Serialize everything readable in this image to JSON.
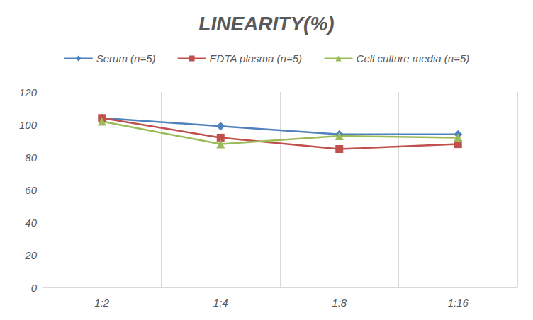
{
  "chart_data": {
    "type": "line",
    "title": "LINEARITY(%)",
    "categories": [
      "1:2",
      "1:4",
      "1:8",
      "1:16"
    ],
    "series": [
      {
        "name": "Serum (n=5)",
        "color": "#4f81bd",
        "marker": "diamond",
        "values": [
          104,
          99,
          94,
          94
        ]
      },
      {
        "name": "EDTA plasma (n=5)",
        "color": "#c0504d",
        "marker": "square",
        "values": [
          104,
          92,
          85,
          88
        ]
      },
      {
        "name": "Cell culture media (n=5)",
        "color": "#9bbb59",
        "marker": "triangle",
        "values": [
          102,
          88,
          93,
          92
        ]
      }
    ],
    "ylim": [
      0,
      120
    ],
    "yticks": [
      0,
      20,
      40,
      60,
      80,
      100,
      120
    ],
    "grid": true,
    "legend": "top"
  }
}
